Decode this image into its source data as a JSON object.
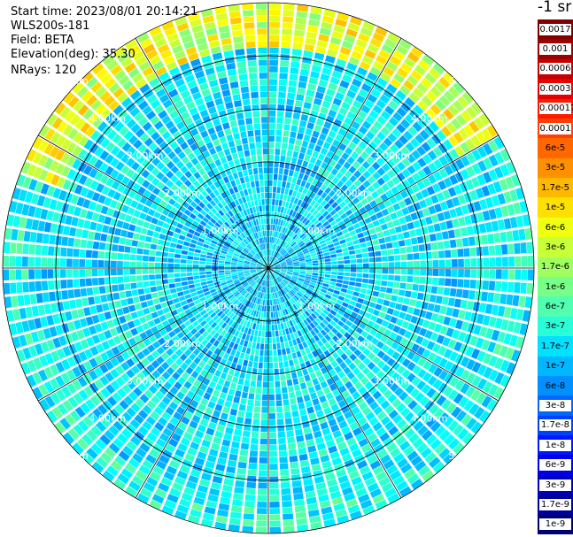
{
  "header": {
    "start_time": "Start time: 2023/08/01 20:14:21",
    "instrument": "WLS200s-181",
    "field": "Field: BETA",
    "elevation": "Elevation(deg): 35.30",
    "nrays": "NRays: 120"
  },
  "colorbar": {
    "unit_label": "-1 sr",
    "labels": [
      "0.0017",
      "0.001",
      "0.0006",
      "0.0003",
      "0.00017",
      "0.0001",
      "6e-5",
      "3e-5",
      "1.7e-5",
      "1e-5",
      "6e-6",
      "3e-6",
      "1.7e-6",
      "1e-6",
      "6e-7",
      "3e-7",
      "1.7e-7",
      "1e-7",
      "6e-8",
      "3e-8",
      "1.7e-8",
      "1e-8",
      "6e-9",
      "3e-9",
      "1.7e-9",
      "1e-9"
    ],
    "colors": [
      "#800000",
      "#9c0000",
      "#c40000",
      "#e60000",
      "#ff1a00",
      "#ff4000",
      "#ff6800",
      "#ff9000",
      "#ffb800",
      "#ffe000",
      "#f0ff10",
      "#c8ff38",
      "#a0ff60",
      "#78ff88",
      "#50ffb0",
      "#28ffd8",
      "#00e0ff",
      "#00b8ff",
      "#0090ff",
      "#0068ff",
      "#0040ff",
      "#0018ff",
      "#0000e6",
      "#0000c0",
      "#00009a",
      "#000070"
    ]
  },
  "chart_data": {
    "type": "ppi_polar_heatmap",
    "field": "BETA",
    "nrays": 120,
    "elevation_deg": 35.3,
    "max_range_km": 5.0,
    "range_ring_km": [
      1,
      2,
      3,
      4,
      5
    ],
    "range_ring_labels": [
      "1.00km",
      "2.00km",
      "3.00km",
      "4.00km",
      "5.00km"
    ],
    "azimuth_lines_deg": [
      0,
      30,
      60,
      90,
      120,
      150,
      180,
      210,
      240,
      270,
      300,
      330
    ],
    "color_scale": "log",
    "value_range": [
      1e-09,
      0.0017
    ],
    "dominant_value_near": 1.7e-07,
    "high_backscatter_arc": {
      "azimuth_deg_from": 290,
      "azimuth_deg_to": 60,
      "range_km_from": 4.2,
      "range_km_to": 5.0,
      "peak_value_approx": 1e-05
    }
  }
}
